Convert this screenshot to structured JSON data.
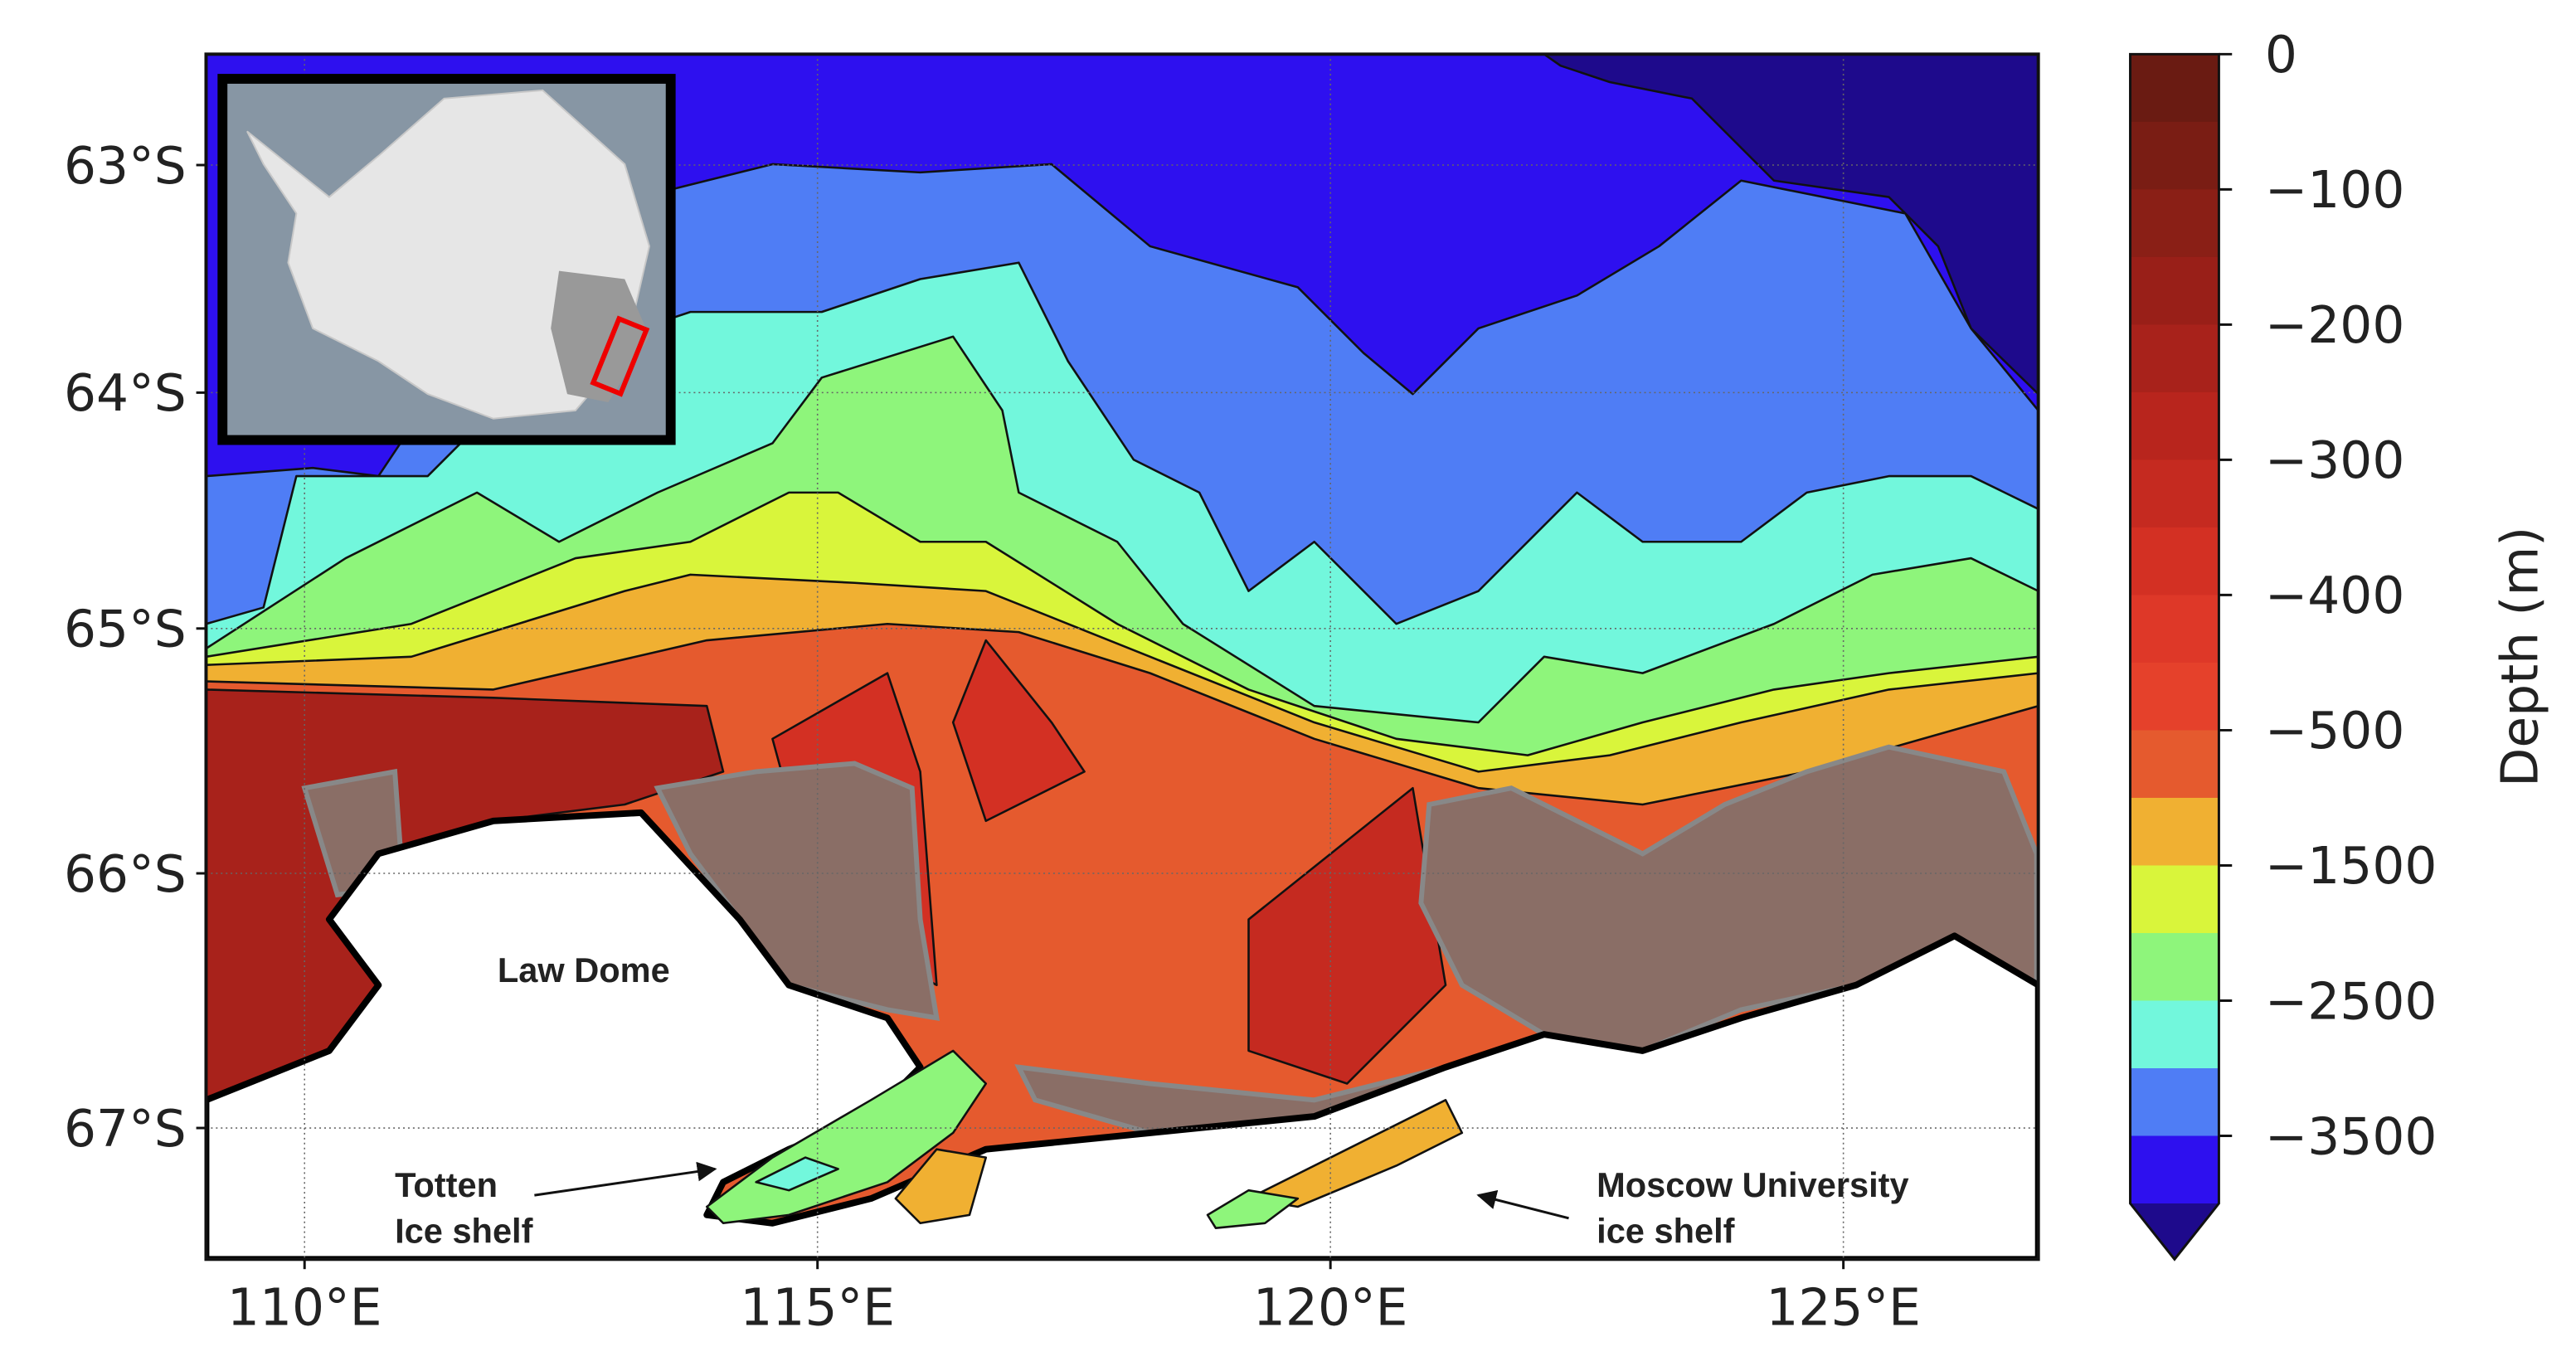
{
  "map": {
    "projection": "mercator",
    "xlim": [
      109.04,
      126.9
    ],
    "ylim": [
      -62.5,
      -67.5
    ],
    "grid": true,
    "xticks": [
      {
        "value": 110,
        "label": "110°E"
      },
      {
        "value": 115,
        "label": "115°E"
      },
      {
        "value": 120,
        "label": "120°E"
      },
      {
        "value": 125,
        "label": "125°E"
      }
    ],
    "yticks": [
      {
        "value": -63,
        "label": "63°S"
      },
      {
        "value": -64,
        "label": "64°S"
      },
      {
        "value": -65,
        "label": "65°S"
      },
      {
        "value": -66,
        "label": "66°S"
      },
      {
        "value": -67,
        "label": "67°S"
      }
    ],
    "colorbar": {
      "label": "Depth (m)",
      "levels": [
        0,
        -50,
        -100,
        -150,
        -200,
        -250,
        -300,
        -350,
        -400,
        -450,
        -500,
        -1000,
        -1500,
        -2000,
        -2500,
        -3000,
        -3500,
        -4000
      ],
      "colors": [
        "#6a1b12",
        "#7a1d14",
        "#8a1f16",
        "#991f18",
        "#a8221b",
        "#b8251d",
        "#c52a20",
        "#d33023",
        "#de3828",
        "#e5412b",
        "#e55a2e",
        "#f0b032",
        "#d9f53b",
        "#8ef57b",
        "#72f7dc",
        "#4f7df5",
        "#2e10ef"
      ],
      "extend_color": "#1e0a8c",
      "ticks": [
        {
          "value": 0,
          "label": "0"
        },
        {
          "value": -100,
          "label": "−100"
        },
        {
          "value": -200,
          "label": "−200"
        },
        {
          "value": -300,
          "label": "−300"
        },
        {
          "value": -400,
          "label": "−400"
        },
        {
          "value": -500,
          "label": "−500"
        },
        {
          "value": -1500,
          "label": "−1500"
        },
        {
          "value": -2500,
          "label": "−2500"
        },
        {
          "value": -3500,
          "label": "−3500"
        }
      ]
    },
    "annotations": [
      {
        "lines": [
          "Law Dome"
        ]
      },
      {
        "lines": [
          "Totten",
          "Ice shelf"
        ]
      },
      {
        "lines": [
          "Moscow University",
          "ice shelf"
        ]
      }
    ]
  }
}
